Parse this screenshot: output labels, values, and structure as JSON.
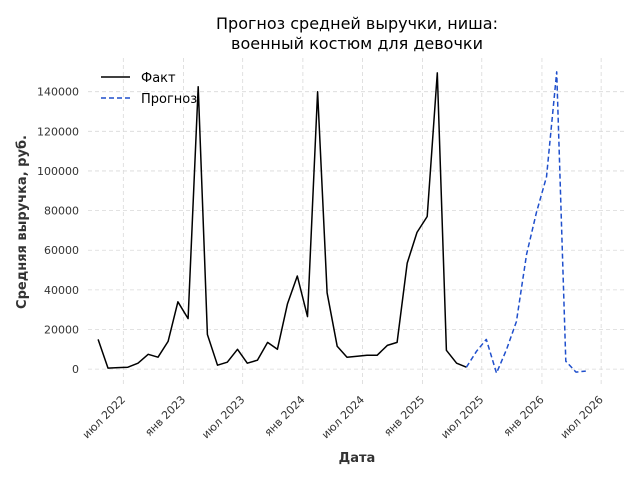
{
  "chart_data": {
    "type": "line",
    "title_line1": "Прогноз средней выручки, ниша:",
    "title_line2": "военный костюм для девочки",
    "xlabel": "Дата",
    "ylabel": "Средняя выручка, руб.",
    "xlim": [
      "2022-03-15",
      "2026-09-15"
    ],
    "ylim": [
      -7500,
      157000
    ],
    "y_ticks": [
      0,
      20000,
      40000,
      60000,
      80000,
      100000,
      120000,
      140000
    ],
    "x_ticks": [
      {
        "date": "2022-07-01",
        "label": "июл 2022"
      },
      {
        "date": "2023-01-01",
        "label": "янв 2023"
      },
      {
        "date": "2023-07-01",
        "label": "июл 2023"
      },
      {
        "date": "2024-01-01",
        "label": "янв 2024"
      },
      {
        "date": "2024-07-01",
        "label": "июл 2024"
      },
      {
        "date": "2025-01-01",
        "label": "янв 2025"
      },
      {
        "date": "2025-07-01",
        "label": "июл 2025"
      },
      {
        "date": "2026-01-01",
        "label": "янв 2026"
      },
      {
        "date": "2026-07-01",
        "label": "июл 2026"
      }
    ],
    "grid": true,
    "legend_position": "top-left",
    "series": [
      {
        "name": "Факт",
        "color": "#000000",
        "dash": "solid",
        "points": [
          [
            "2022-04-15",
            15000
          ],
          [
            "2022-05-15",
            500
          ],
          [
            "2022-06-15",
            800
          ],
          [
            "2022-07-15",
            1000
          ],
          [
            "2022-08-15",
            3000
          ],
          [
            "2022-09-15",
            7500
          ],
          [
            "2022-10-15",
            6000
          ],
          [
            "2022-11-15",
            14000
          ],
          [
            "2022-12-15",
            34000
          ],
          [
            "2023-01-15",
            25500
          ],
          [
            "2023-02-15",
            142500
          ],
          [
            "2023-03-15",
            17500
          ],
          [
            "2023-04-15",
            2000
          ],
          [
            "2023-05-15",
            3500
          ],
          [
            "2023-06-15",
            10000
          ],
          [
            "2023-07-15",
            3000
          ],
          [
            "2023-08-15",
            4500
          ],
          [
            "2023-09-15",
            13500
          ],
          [
            "2023-10-15",
            10000
          ],
          [
            "2023-11-15",
            33000
          ],
          [
            "2023-12-15",
            47000
          ],
          [
            "2024-01-15",
            26500
          ],
          [
            "2024-02-15",
            140000
          ],
          [
            "2024-03-15",
            38500
          ],
          [
            "2024-04-15",
            11500
          ],
          [
            "2024-05-15",
            6000
          ],
          [
            "2024-06-15",
            6500
          ],
          [
            "2024-07-15",
            7000
          ],
          [
            "2024-08-15",
            7000
          ],
          [
            "2024-09-15",
            12000
          ],
          [
            "2024-10-15",
            13500
          ],
          [
            "2024-11-15",
            53500
          ],
          [
            "2024-12-15",
            69000
          ],
          [
            "2025-01-15",
            77000
          ],
          [
            "2025-02-15",
            149500
          ],
          [
            "2025-03-15",
            9500
          ],
          [
            "2025-04-15",
            3000
          ],
          [
            "2025-05-15",
            1000
          ]
        ]
      },
      {
        "name": "Прогноз",
        "color": "#1f4fcc",
        "dash": "dashed",
        "points": [
          [
            "2025-05-15",
            1000
          ],
          [
            "2025-06-15",
            9000
          ],
          [
            "2025-07-15",
            15000
          ],
          [
            "2025-08-15",
            -2000
          ],
          [
            "2025-09-15",
            10000
          ],
          [
            "2025-10-15",
            24000
          ],
          [
            "2025-11-15",
            58000
          ],
          [
            "2025-12-15",
            79000
          ],
          [
            "2026-01-15",
            97000
          ],
          [
            "2026-02-15",
            150000
          ],
          [
            "2026-03-15",
            4000
          ],
          [
            "2026-04-15",
            -1500
          ],
          [
            "2026-05-15",
            -1000
          ]
        ]
      }
    ]
  }
}
